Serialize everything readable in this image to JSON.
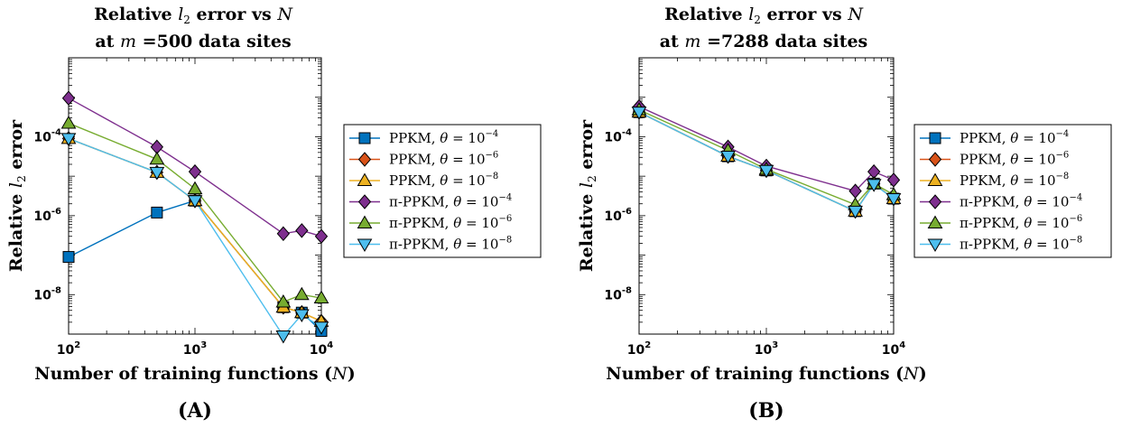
{
  "chart_data": [
    {
      "type": "line",
      "panel_label": "(A)",
      "title_line1": [
        "Relative ",
        "l",
        "2",
        " error vs ",
        "N"
      ],
      "title_line2": [
        "at ",
        "m",
        " =500 data sites"
      ],
      "xlabel": [
        "Number of training functions (",
        "N",
        ")"
      ],
      "ylabel": [
        "Relative ",
        "l",
        "2",
        " error"
      ],
      "xscale": "log",
      "yscale": "log",
      "xlim": [
        100,
        10000
      ],
      "ylim": [
        1e-09,
        0.01
      ],
      "xticks": [
        {
          "base": "10",
          "exp": "2",
          "value": 100
        },
        {
          "base": "10",
          "exp": "3",
          "value": 1000
        },
        {
          "base": "10",
          "exp": "4",
          "value": 10000
        }
      ],
      "yticks": [
        {
          "base": "10",
          "exp": "-4",
          "value": 0.0001
        },
        {
          "base": "10",
          "exp": "-6",
          "value": 1e-06
        },
        {
          "base": "10",
          "exp": "-8",
          "value": 1e-08
        }
      ],
      "x": [
        100,
        500,
        1000,
        5000,
        7000,
        10000
      ],
      "series": [
        {
          "name": [
            "PPKM,  ",
            "θ",
            " = 10",
            "−4"
          ],
          "values": [
            9e-08,
            1.2e-06,
            2.4e-06,
            4.8e-09,
            3.5e-09,
            1.2e-09
          ]
        },
        {
          "name": [
            "PPKM,  ",
            "θ",
            " = 10",
            "−6"
          ],
          "values": [
            9e-05,
            1.25e-05,
            2.4e-06,
            4.8e-09,
            3.5e-09,
            2.1e-09
          ]
        },
        {
          "name": [
            "PPKM,  ",
            "θ",
            " = 10",
            "−8"
          ],
          "values": [
            9e-05,
            1.25e-05,
            2.4e-06,
            4.8e-09,
            3.5e-09,
            2.1e-09
          ]
        },
        {
          "name": [
            "π-PPKM,  ",
            "θ",
            " = 10",
            "−4"
          ],
          "values": [
            0.00095,
            5.5e-05,
            1.3e-05,
            3.5e-07,
            4.2e-07,
            3e-07
          ]
        },
        {
          "name": [
            "π-PPKM,  ",
            "θ",
            " = 10",
            "−6"
          ],
          "values": [
            0.00022,
            2.7e-05,
            4.8e-06,
            6.5e-09,
            1e-08,
            8.2e-09
          ]
        },
        {
          "name": [
            "π-PPKM,  ",
            "θ",
            " = 10",
            "−8"
          ],
          "values": [
            9e-05,
            1.25e-05,
            2.4e-06,
            9e-10,
            3.1e-09,
            1.5e-09
          ]
        }
      ]
    },
    {
      "type": "line",
      "panel_label": "(B)",
      "title_line1": [
        "Relative ",
        "l",
        "2",
        " error vs ",
        "N"
      ],
      "title_line2": [
        "at ",
        "m",
        " =7288 data sites"
      ],
      "xlabel": [
        "Number of training functions (",
        "N",
        ")"
      ],
      "ylabel": [
        "Relative ",
        "l",
        "2",
        " error"
      ],
      "xscale": "log",
      "yscale": "log",
      "xlim": [
        100,
        10000
      ],
      "ylim": [
        1e-09,
        0.01
      ],
      "xticks": [
        {
          "base": "10",
          "exp": "2",
          "value": 100
        },
        {
          "base": "10",
          "exp": "3",
          "value": 1000
        },
        {
          "base": "10",
          "exp": "4",
          "value": 10000
        }
      ],
      "yticks": [
        {
          "base": "10",
          "exp": "-4",
          "value": 0.0001
        },
        {
          "base": "10",
          "exp": "-6",
          "value": 1e-06
        },
        {
          "base": "10",
          "exp": "-8",
          "value": 1e-08
        }
      ],
      "x": [
        100,
        500,
        1000,
        5000,
        7000,
        10000
      ],
      "series": [
        {
          "name": [
            "PPKM,  ",
            "θ",
            " = 10",
            "−4"
          ],
          "values": [
            0.00042,
            3.2e-05,
            1.4e-05,
            1.3e-06,
            6.5e-06,
            2.7e-06
          ]
        },
        {
          "name": [
            "PPKM,  ",
            "θ",
            " = 10",
            "−6"
          ],
          "values": [
            0.00042,
            3.2e-05,
            1.4e-05,
            1.3e-06,
            6.5e-06,
            2.7e-06
          ]
        },
        {
          "name": [
            "PPKM,  ",
            "θ",
            " = 10",
            "−8"
          ],
          "values": [
            0.00042,
            3.2e-05,
            1.4e-05,
            1.3e-06,
            6.5e-06,
            2.7e-06
          ]
        },
        {
          "name": [
            "π-PPKM,  ",
            "θ",
            " = 10",
            "−4"
          ],
          "values": [
            0.00058,
            5.5e-05,
            1.8e-05,
            4.2e-06,
            1.3e-05,
            8e-06
          ]
        },
        {
          "name": [
            "π-PPKM,  ",
            "θ",
            " = 10",
            "−6"
          ],
          "values": [
            0.00048,
            4.5e-05,
            1.5e-05,
            1.9e-06,
            6.5e-06,
            3.4e-06
          ]
        },
        {
          "name": [
            "π-PPKM,  ",
            "θ",
            " = 10",
            "−8"
          ],
          "values": [
            0.00042,
            3.2e-05,
            1.4e-05,
            1.3e-06,
            6.2e-06,
            2.7e-06
          ]
        }
      ]
    }
  ],
  "style": {
    "series_colors": [
      "#0072BD",
      "#D95319",
      "#EDB120",
      "#7E2F8E",
      "#77AC30",
      "#4DBEEE"
    ],
    "series_markers": [
      "square",
      "diamond",
      "triangle-up",
      "diamond",
      "triangle-up",
      "triangle-down"
    ]
  }
}
